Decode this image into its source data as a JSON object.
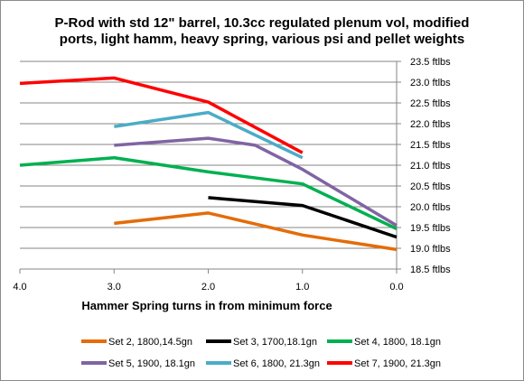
{
  "chart_data": {
    "type": "line",
    "title_lines": [
      "P-Rod with std 12\" barrel, 10.3cc regulated plenum vol, modified",
      "ports, light hamm, heavy spring, various psi and pellet weights"
    ],
    "xlabel": "Hammer Spring turns in from minimum force",
    "xlim": [
      4.0,
      0.0
    ],
    "x_reversed": true,
    "x_ticks": [
      "4.0",
      "3.0",
      "2.0",
      "1.0",
      "0.0"
    ],
    "x_tick_values": [
      4.0,
      3.0,
      2.0,
      1.0,
      0.0
    ],
    "ylim": [
      18.5,
      23.5
    ],
    "y_axis_side": "right",
    "y_ticks": [
      "23.5 ftlbs",
      "23.0 ftlbs",
      "22.5 ftlbs",
      "22.0 ftlbs",
      "21.5 ftlbs",
      "21.0 ftlbs",
      "20.5 ftlbs",
      "20.0 ftlbs",
      "19.5 ftlbs",
      "19.0 ftlbs",
      "18.5 ftlbs"
    ],
    "y_tick_values": [
      23.5,
      23.0,
      22.5,
      22.0,
      21.5,
      21.0,
      20.5,
      20.0,
      19.5,
      19.0,
      18.5
    ],
    "grid": "horizontal",
    "legend_position": "bottom",
    "series": [
      {
        "name": "Set 2, 1800,14.5gn",
        "color": "#E46C0A",
        "points": [
          [
            3.0,
            19.6
          ],
          [
            2.0,
            19.85
          ],
          [
            1.0,
            19.32
          ],
          [
            0.0,
            18.97
          ]
        ]
      },
      {
        "name": "Set 3, 1700,18.1gn",
        "color": "#000000",
        "points": [
          [
            2.0,
            20.22
          ],
          [
            1.0,
            20.03
          ],
          [
            0.0,
            19.27
          ]
        ]
      },
      {
        "name": "Set 4, 1800, 18.1gn",
        "color": "#00B050",
        "points": [
          [
            4.0,
            21.0
          ],
          [
            3.0,
            21.18
          ],
          [
            2.0,
            20.84
          ],
          [
            1.0,
            20.55
          ],
          [
            0.0,
            19.47
          ]
        ]
      },
      {
        "name": "Set 5, 1900, 18.1gn",
        "color": "#8064A2",
        "points": [
          [
            3.0,
            21.48
          ],
          [
            2.0,
            21.65
          ],
          [
            1.5,
            21.48
          ],
          [
            1.0,
            20.9
          ],
          [
            0.0,
            19.55
          ]
        ]
      },
      {
        "name": "Set 6, 1800, 21.3gn",
        "color": "#4BACC6",
        "points": [
          [
            3.0,
            21.93
          ],
          [
            2.0,
            22.27
          ],
          [
            1.0,
            21.18
          ]
        ]
      },
      {
        "name": "Set 7, 1900, 21.3gn",
        "color": "#FF0000",
        "points": [
          [
            4.0,
            22.97
          ],
          [
            3.0,
            23.1
          ],
          [
            2.0,
            22.52
          ],
          [
            1.0,
            21.3
          ]
        ]
      }
    ]
  }
}
